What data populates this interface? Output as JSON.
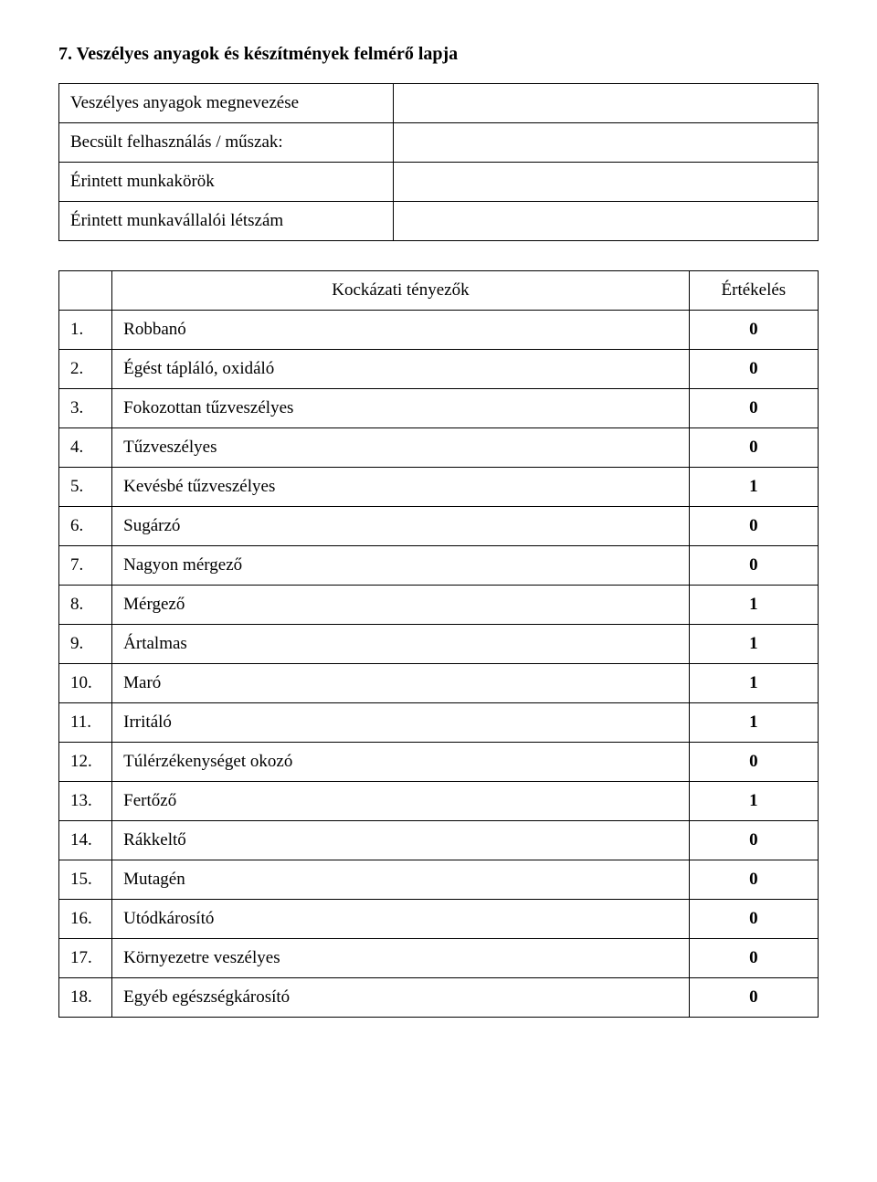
{
  "title": "7. Veszélyes anyagok és készítmények felmérő lapja",
  "info": {
    "rows": [
      {
        "label": "Veszélyes anyagok megnevezése",
        "value": ""
      },
      {
        "label": "Becsült felhasználás / műszak:",
        "value": ""
      },
      {
        "label": "Érintett munkakörök",
        "value": ""
      },
      {
        "label": "Érintett munkavállalói létszám",
        "value": ""
      }
    ]
  },
  "riskTable": {
    "header": {
      "factor": "Kockázati tényezők",
      "rating": "Értékelés"
    },
    "rows": [
      {
        "num": "1.",
        "text": "Robbanó",
        "value": "0"
      },
      {
        "num": "2.",
        "text": "Égést tápláló, oxidáló",
        "value": "0"
      },
      {
        "num": "3.",
        "text": "Fokozottan tűzveszélyes",
        "value": "0"
      },
      {
        "num": "4.",
        "text": "Tűzveszélyes",
        "value": "0"
      },
      {
        "num": "5.",
        "text": "Kevésbé tűzveszélyes",
        "value": "1"
      },
      {
        "num": "6.",
        "text": "Sugárzó",
        "value": "0"
      },
      {
        "num": "7.",
        "text": "Nagyon mérgező",
        "value": "0"
      },
      {
        "num": "8.",
        "text": "Mérgező",
        "value": "1"
      },
      {
        "num": "9.",
        "text": "Ártalmas",
        "value": "1"
      },
      {
        "num": "10.",
        "text": "Maró",
        "value": "1"
      },
      {
        "num": "11.",
        "text": "Irritáló",
        "value": "1"
      },
      {
        "num": "12.",
        "text": "Túlérzékenységet okozó",
        "value": "0"
      },
      {
        "num": "13.",
        "text": "Fertőző",
        "value": "1"
      },
      {
        "num": "14.",
        "text": "Rákkeltő",
        "value": "0"
      },
      {
        "num": "15.",
        "text": "Mutagén",
        "value": "0"
      },
      {
        "num": "16.",
        "text": "Utódkárosító",
        "value": "0"
      },
      {
        "num": "17.",
        "text": "Környezetre veszélyes",
        "value": "0"
      },
      {
        "num": "18.",
        "text": "Egyéb egészségkárosító",
        "value": "0"
      }
    ]
  }
}
